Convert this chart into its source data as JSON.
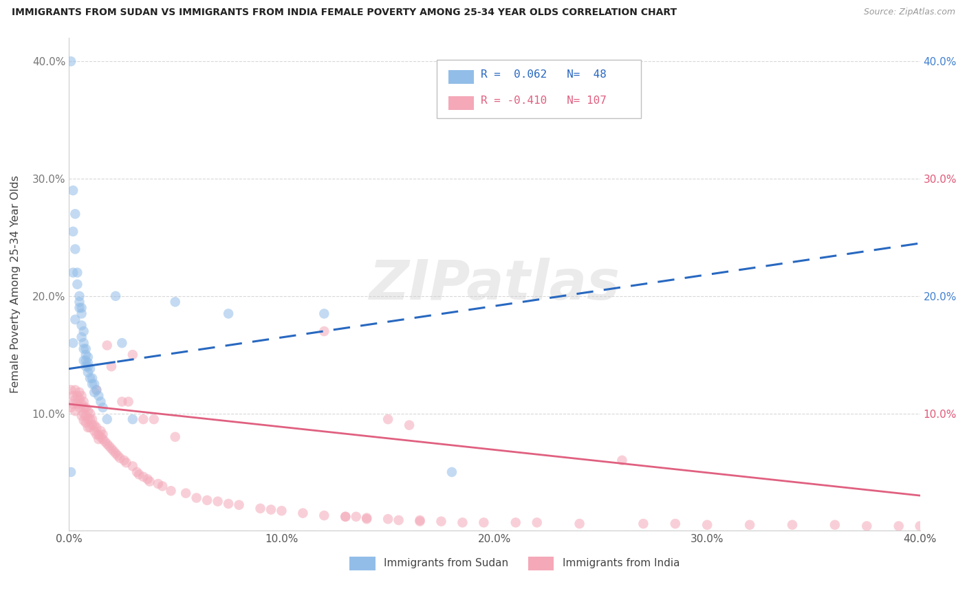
{
  "title": "IMMIGRANTS FROM SUDAN VS IMMIGRANTS FROM INDIA FEMALE POVERTY AMONG 25-34 YEAR OLDS CORRELATION CHART",
  "source": "Source: ZipAtlas.com",
  "legend_label_sudan": "Immigrants from Sudan",
  "legend_label_india": "Immigrants from India",
  "ylabel": "Female Poverty Among 25-34 Year Olds",
  "xlim": [
    0.0,
    0.4
  ],
  "ylim": [
    0.0,
    0.42
  ],
  "xticks": [
    0.0,
    0.1,
    0.2,
    0.3,
    0.4
  ],
  "yticks": [
    0.0,
    0.1,
    0.2,
    0.3,
    0.4
  ],
  "xtick_labels": [
    "0.0%",
    "10.0%",
    "20.0%",
    "30.0%",
    "40.0%"
  ],
  "ytick_labels": [
    "",
    "10.0%",
    "20.0%",
    "30.0%",
    "40.0%"
  ],
  "right_ytick_labels": [
    "",
    "10.0%",
    "20.0%",
    "30.0%",
    "40.0%"
  ],
  "right_ytick_colors": [
    "#555555",
    "#e05878",
    "#4080d0",
    "#e05878",
    "#4080d0"
  ],
  "R_sudan": 0.062,
  "N_sudan": 48,
  "R_india": -0.41,
  "N_india": 107,
  "color_sudan": "#92bde8",
  "color_india": "#f4a8b8",
  "line_color_sudan": "#2868c0",
  "line_color_india": "#e06080",
  "watermark": "ZIPatlas",
  "sudan_line_solid_end": 0.022,
  "sudan_line_start_y": 0.138,
  "sudan_line_end_y": 0.245,
  "india_line_start_y": 0.108,
  "india_line_end_y": 0.03,
  "sudan_pts_x": [
    0.001,
    0.001,
    0.002,
    0.002,
    0.002,
    0.003,
    0.003,
    0.003,
    0.004,
    0.004,
    0.005,
    0.005,
    0.005,
    0.006,
    0.006,
    0.006,
    0.006,
    0.007,
    0.007,
    0.007,
    0.007,
    0.008,
    0.008,
    0.008,
    0.008,
    0.009,
    0.009,
    0.009,
    0.009,
    0.01,
    0.01,
    0.011,
    0.011,
    0.012,
    0.012,
    0.013,
    0.014,
    0.015,
    0.016,
    0.018,
    0.022,
    0.025,
    0.03,
    0.05,
    0.075,
    0.12,
    0.18,
    0.002
  ],
  "sudan_pts_y": [
    0.4,
    0.05,
    0.29,
    0.255,
    0.22,
    0.27,
    0.24,
    0.18,
    0.22,
    0.21,
    0.2,
    0.195,
    0.19,
    0.19,
    0.185,
    0.175,
    0.165,
    0.17,
    0.16,
    0.155,
    0.145,
    0.155,
    0.15,
    0.145,
    0.14,
    0.148,
    0.143,
    0.14,
    0.135,
    0.138,
    0.13,
    0.13,
    0.125,
    0.125,
    0.118,
    0.12,
    0.115,
    0.11,
    0.105,
    0.095,
    0.2,
    0.16,
    0.095,
    0.195,
    0.185,
    0.185,
    0.05,
    0.16
  ],
  "india_pts_x": [
    0.001,
    0.001,
    0.002,
    0.002,
    0.003,
    0.003,
    0.003,
    0.004,
    0.004,
    0.005,
    0.005,
    0.005,
    0.006,
    0.006,
    0.006,
    0.007,
    0.007,
    0.007,
    0.007,
    0.008,
    0.008,
    0.008,
    0.009,
    0.009,
    0.009,
    0.01,
    0.01,
    0.01,
    0.011,
    0.011,
    0.012,
    0.012,
    0.013,
    0.013,
    0.013,
    0.014,
    0.014,
    0.015,
    0.015,
    0.016,
    0.016,
    0.017,
    0.018,
    0.018,
    0.019,
    0.02,
    0.02,
    0.021,
    0.022,
    0.023,
    0.024,
    0.025,
    0.026,
    0.027,
    0.028,
    0.03,
    0.03,
    0.032,
    0.033,
    0.035,
    0.035,
    0.037,
    0.038,
    0.04,
    0.042,
    0.044,
    0.048,
    0.05,
    0.055,
    0.06,
    0.065,
    0.07,
    0.075,
    0.08,
    0.09,
    0.095,
    0.1,
    0.11,
    0.12,
    0.13,
    0.14,
    0.15,
    0.155,
    0.165,
    0.175,
    0.185,
    0.195,
    0.21,
    0.22,
    0.24,
    0.26,
    0.27,
    0.285,
    0.3,
    0.32,
    0.34,
    0.36,
    0.375,
    0.39,
    0.4,
    0.12,
    0.13,
    0.135,
    0.14,
    0.15,
    0.16,
    0.165
  ],
  "india_pts_y": [
    0.12,
    0.105,
    0.115,
    0.108,
    0.12,
    0.112,
    0.102,
    0.115,
    0.108,
    0.118,
    0.112,
    0.105,
    0.115,
    0.108,
    0.098,
    0.11,
    0.105,
    0.1,
    0.094,
    0.105,
    0.098,
    0.092,
    0.102,
    0.095,
    0.088,
    0.1,
    0.095,
    0.088,
    0.095,
    0.09,
    0.09,
    0.085,
    0.12,
    0.082,
    0.088,
    0.082,
    0.078,
    0.08,
    0.085,
    0.078,
    0.082,
    0.076,
    0.158,
    0.074,
    0.072,
    0.14,
    0.07,
    0.068,
    0.066,
    0.064,
    0.062,
    0.11,
    0.06,
    0.058,
    0.11,
    0.15,
    0.055,
    0.05,
    0.048,
    0.095,
    0.046,
    0.044,
    0.042,
    0.095,
    0.04,
    0.038,
    0.034,
    0.08,
    0.032,
    0.028,
    0.026,
    0.025,
    0.023,
    0.022,
    0.019,
    0.018,
    0.017,
    0.015,
    0.013,
    0.012,
    0.01,
    0.095,
    0.009,
    0.008,
    0.008,
    0.007,
    0.007,
    0.007,
    0.007,
    0.006,
    0.06,
    0.006,
    0.006,
    0.005,
    0.005,
    0.005,
    0.005,
    0.004,
    0.004,
    0.004,
    0.17,
    0.012,
    0.012,
    0.011,
    0.01,
    0.09,
    0.009
  ]
}
